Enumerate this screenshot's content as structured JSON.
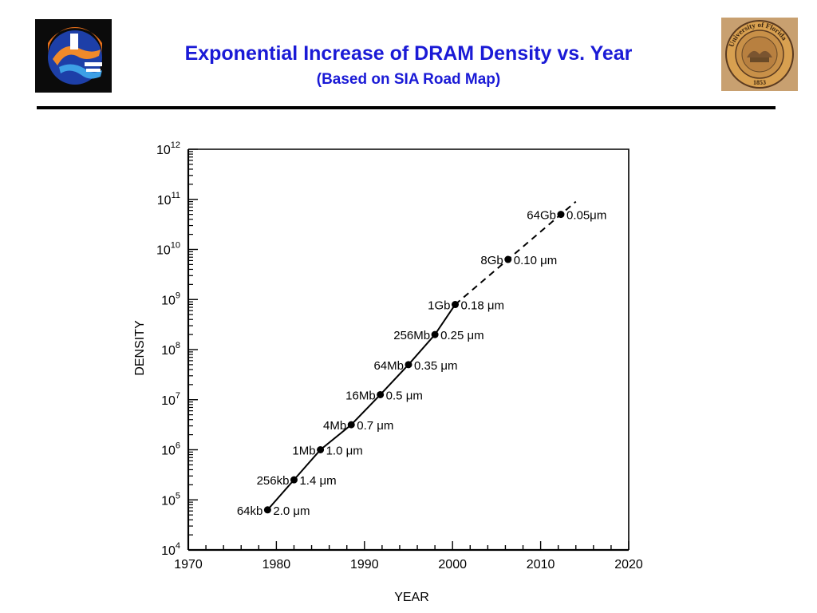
{
  "header": {
    "title": "Exponential Increase of DRAM Density vs. Year",
    "subtitle": "(Based on SIA Road Map)"
  },
  "logos": {
    "left": "gator-logo",
    "right": "university-of-florida-seal",
    "seal_text": "University of Florida",
    "seal_year": "1853"
  },
  "colors": {
    "title": "#1a1ad6",
    "rule": "#000000",
    "logo_orange": "#e8701a",
    "logo_blue": "#1d3fa8",
    "seal_gold": "#d8a050"
  },
  "chart_data": {
    "type": "line",
    "xlabel": "YEAR",
    "ylabel": "DENSITY",
    "x_scale": "linear",
    "y_scale": "log",
    "xlim": [
      1970,
      2020
    ],
    "ylim_exponent": [
      4,
      12
    ],
    "x_ticks": [
      "1970",
      "1980",
      "1990",
      "2000",
      "2010",
      "2020"
    ],
    "y_ticks": [
      {
        "base": "10",
        "exp": "12"
      },
      {
        "base": "10",
        "exp": "11"
      },
      {
        "base": "10",
        "exp": "10"
      },
      {
        "base": "10",
        "exp": "9"
      },
      {
        "base": "10",
        "exp": "8"
      },
      {
        "base": "10",
        "exp": "7"
      },
      {
        "base": "10",
        "exp": "6"
      },
      {
        "base": "10",
        "exp": "5"
      },
      {
        "base": "10",
        "exp": "4"
      }
    ],
    "grid": false,
    "points": [
      {
        "year": 1979,
        "log_density": 4.8,
        "label": "64kb",
        "feature": "2.0 μm",
        "projected": false
      },
      {
        "year": 1982,
        "log_density": 5.4,
        "label": "256kb",
        "feature": "1.4 μm",
        "projected": false
      },
      {
        "year": 1985,
        "log_density": 6.0,
        "label": "1Mb",
        "feature": "1.0 μm",
        "projected": false
      },
      {
        "year": 1988.5,
        "log_density": 6.5,
        "label": "4Mb",
        "feature": "0.7 μm",
        "projected": false
      },
      {
        "year": 1991.8,
        "log_density": 7.1,
        "label": "16Mb",
        "feature": "0.5 μm",
        "projected": false
      },
      {
        "year": 1995,
        "log_density": 7.7,
        "label": "64Mb",
        "feature": "0.35 μm",
        "projected": false
      },
      {
        "year": 1998,
        "log_density": 8.3,
        "label": "256Mb",
        "feature": "0.25 μm",
        "projected": false
      },
      {
        "year": 2000.3,
        "log_density": 8.9,
        "label": "1Gb",
        "feature": "0.18 μm",
        "projected": false
      },
      {
        "year": 2006.3,
        "log_density": 9.8,
        "label": "8Gb",
        "feature": "0.10 μm",
        "projected": true
      },
      {
        "year": 2012.3,
        "log_density": 10.7,
        "label": "64Gb",
        "feature": "0.05μm",
        "projected": true
      }
    ],
    "dashed_extension_to_year": 2014
  }
}
